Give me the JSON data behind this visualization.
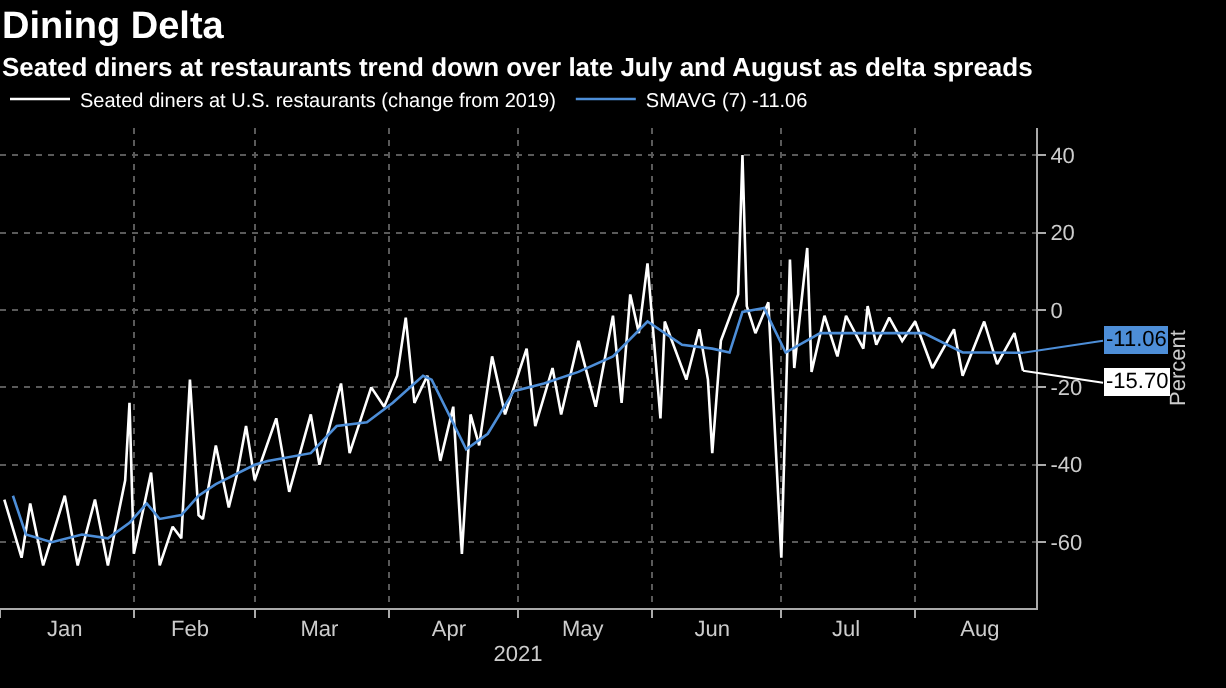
{
  "chart_data": {
    "type": "line",
    "title": "Dining Delta",
    "subtitle": "Seated diners at restaurants trend down over late July and August as delta spreads",
    "xlabel": "2021",
    "ylabel": "Percent",
    "xlim": [
      "2021-01-01",
      "2021-08-29"
    ],
    "xticks": [
      {
        "value": "2021-01-16",
        "label": "Jan"
      },
      {
        "value": "2021-02-14",
        "label": "Feb"
      },
      {
        "value": "2021-03-16",
        "label": "Mar"
      },
      {
        "value": "2021-04-15",
        "label": "Apr"
      },
      {
        "value": "2021-05-16",
        "label": "May"
      },
      {
        "value": "2021-06-15",
        "label": "Jun"
      },
      {
        "value": "2021-07-16",
        "label": "Jul"
      },
      {
        "value": "2021-08-16",
        "label": "Aug"
      }
    ],
    "ylim": [
      -77,
      47
    ],
    "yticks": [
      -60,
      -40,
      -20,
      0,
      20,
      40
    ],
    "grid": true,
    "legend": "top left",
    "marker": "none",
    "line_style": "solid",
    "series": [
      {
        "name": "Seated diners at U.S. restaurants (change from 2019)",
        "color": "#ffffff",
        "x": [
          "2021-01-02",
          "2021-01-06",
          "2021-01-08",
          "2021-01-11",
          "2021-01-16",
          "2021-01-19",
          "2021-01-23",
          "2021-01-26",
          "2021-01-30",
          "2021-01-31",
          "2021-02-01",
          "2021-02-05",
          "2021-02-07",
          "2021-02-10",
          "2021-02-12",
          "2021-02-14",
          "2021-02-16",
          "2021-02-17",
          "2021-02-20",
          "2021-02-23",
          "2021-02-25",
          "2021-02-27",
          "2021-03-01",
          "2021-03-06",
          "2021-03-09",
          "2021-03-14",
          "2021-03-16",
          "2021-03-21",
          "2021-03-23",
          "2021-03-28",
          "2021-03-31",
          "2021-04-03",
          "2021-04-05",
          "2021-04-07",
          "2021-04-10",
          "2021-04-13",
          "2021-04-16",
          "2021-04-18",
          "2021-04-20",
          "2021-04-22",
          "2021-04-25",
          "2021-04-28",
          "2021-05-03",
          "2021-05-05",
          "2021-05-09",
          "2021-05-11",
          "2021-05-15",
          "2021-05-19",
          "2021-05-23",
          "2021-05-25",
          "2021-05-27",
          "2021-05-29",
          "2021-05-31",
          "2021-06-03",
          "2021-06-04",
          "2021-06-09",
          "2021-06-12",
          "2021-06-14",
          "2021-06-15",
          "2021-06-17",
          "2021-06-21",
          "2021-06-22",
          "2021-06-23",
          "2021-06-25",
          "2021-06-28",
          "2021-07-01",
          "2021-07-03",
          "2021-07-04",
          "2021-07-07",
          "2021-07-08",
          "2021-07-11",
          "2021-07-14",
          "2021-07-16",
          "2021-07-20",
          "2021-07-21",
          "2021-07-23",
          "2021-07-26",
          "2021-07-29",
          "2021-08-01",
          "2021-08-05",
          "2021-08-10",
          "2021-08-12",
          "2021-08-17",
          "2021-08-20",
          "2021-08-24",
          "2021-08-26"
        ],
        "values": [
          -49,
          -64,
          -50,
          -66,
          -48,
          -66,
          -49,
          -66,
          -44,
          -24,
          -63,
          -42,
          -66,
          -56,
          -59,
          -18,
          -53,
          -54,
          -35,
          -51,
          -42,
          -30,
          -44,
          -28,
          -47,
          -27,
          -40,
          -19,
          -37,
          -20,
          -25,
          -17,
          -2,
          -24,
          -17,
          -39,
          -25,
          -63,
          -27,
          -35,
          -12,
          -27,
          -10,
          -30,
          -15,
          -27,
          -8,
          -25,
          -1.5,
          -24,
          4,
          -6,
          12,
          -28,
          -3,
          -18,
          -5,
          -18,
          -37,
          -8,
          4,
          40,
          1,
          -6,
          2,
          -64,
          13,
          -15,
          16,
          -16,
          -1.5,
          -12,
          -1.5,
          -10,
          1,
          -9,
          -2,
          -8,
          -3,
          -15,
          -5,
          -17,
          -3,
          -14,
          -6,
          -15.7
        ]
      },
      {
        "name": "SMAVG (7) -11.06",
        "color": "#4d8ed8",
        "x": [
          "2021-01-04",
          "2021-01-07",
          "2021-01-13",
          "2021-01-20",
          "2021-01-26",
          "2021-01-31",
          "2021-02-04",
          "2021-02-07",
          "2021-02-12",
          "2021-02-16",
          "2021-02-20",
          "2021-03-01",
          "2021-03-04",
          "2021-03-14",
          "2021-03-20",
          "2021-03-27",
          "2021-04-02",
          "2021-04-09",
          "2021-04-11",
          "2021-04-19",
          "2021-04-24",
          "2021-04-30",
          "2021-05-07",
          "2021-05-15",
          "2021-05-23",
          "2021-05-31",
          "2021-06-08",
          "2021-06-15",
          "2021-06-19",
          "2021-06-22",
          "2021-06-27",
          "2021-07-02",
          "2021-07-10",
          "2021-07-17",
          "2021-07-26",
          "2021-08-03",
          "2021-08-12",
          "2021-08-17",
          "2021-08-26"
        ],
        "values": [
          -48,
          -58,
          -60,
          -58,
          -59,
          -55,
          -50,
          -54,
          -53,
          -48,
          -45,
          -40,
          -39,
          -37,
          -30,
          -29,
          -24,
          -17,
          -18,
          -36,
          -32,
          -21,
          -19,
          -16,
          -12,
          -3,
          -9,
          -10,
          -11,
          -0.5,
          0.5,
          -11,
          -6,
          -6,
          -6,
          -6,
          -11,
          -11,
          -11.06
        ]
      }
    ],
    "annotations": [
      {
        "text": "-11.06",
        "x": "2021-08-26",
        "y": -11.06
      },
      {
        "text": "-15.70",
        "x": "2021-08-26",
        "y": -15.7
      }
    ]
  }
}
